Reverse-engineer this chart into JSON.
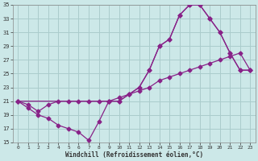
{
  "xlabel": "Windchill (Refroidissement éolien,°C)",
  "bg_color": "#cce8e8",
  "grid_color": "#aacccc",
  "line_color": "#882288",
  "xlim": [
    -0.5,
    23.5
  ],
  "ylim": [
    15,
    35
  ],
  "xticks": [
    0,
    1,
    2,
    3,
    4,
    5,
    6,
    7,
    8,
    9,
    10,
    11,
    12,
    13,
    14,
    15,
    16,
    17,
    18,
    19,
    20,
    21,
    22,
    23
  ],
  "yticks": [
    15,
    17,
    19,
    21,
    23,
    25,
    27,
    29,
    31,
    33,
    35
  ],
  "line1_x": [
    0,
    1,
    2,
    3,
    4,
    5,
    6,
    7,
    8,
    9,
    10,
    11,
    12,
    13,
    14,
    15,
    16,
    17,
    18,
    19,
    20,
    21,
    22,
    23
  ],
  "line1_y": [
    21,
    20,
    19,
    18.5,
    17.5,
    17,
    16.5,
    15.3,
    18,
    21,
    21,
    22,
    23,
    25.5,
    29,
    30,
    33.5,
    35,
    35,
    33,
    31,
    28,
    25.5,
    25.5
  ],
  "line2_x": [
    0,
    1,
    2,
    3,
    4,
    5,
    6,
    7,
    8,
    9,
    10,
    11,
    12,
    13,
    14,
    15,
    16,
    17,
    18,
    19,
    20,
    21,
    22,
    23
  ],
  "line2_y": [
    21,
    20.5,
    19.5,
    20.5,
    21,
    21,
    21,
    21,
    21,
    21,
    21.5,
    22,
    22.5,
    23,
    24,
    24.5,
    25,
    25.5,
    26,
    26.5,
    27,
    27.5,
    28,
    25.5
  ],
  "line3_x": [
    0,
    9,
    10,
    11,
    12,
    13,
    14,
    15,
    16,
    17,
    18,
    19,
    20,
    21,
    22,
    23
  ],
  "line3_y": [
    21,
    21,
    21,
    22,
    23,
    25.5,
    29,
    30,
    33.5,
    35,
    35,
    33,
    31,
    28,
    25.5,
    25.5
  ]
}
